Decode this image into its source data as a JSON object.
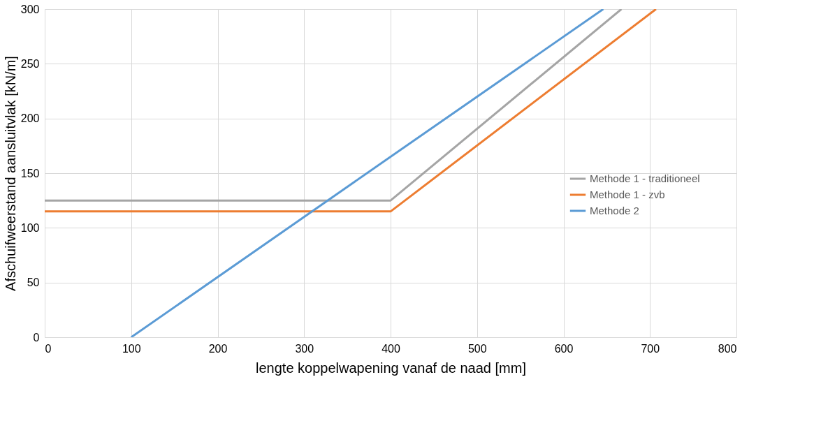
{
  "chart_data": {
    "type": "line",
    "xlabel": "lengte koppelwapening  vanaf de naad [mm]",
    "ylabel": "Afschuifweerstand aansluitvlak [kN/m]",
    "xlim": [
      0,
      800
    ],
    "xticks": [
      0,
      100,
      200,
      300,
      400,
      500,
      600,
      700,
      800
    ],
    "ylim": [
      0,
      300
    ],
    "yticks": [
      0,
      50,
      100,
      150,
      200,
      250,
      300
    ],
    "grid": true,
    "legend": "right",
    "marker": "none",
    "line_style": "solid",
    "series": [
      {
        "name": "Methode 1 - traditioneel",
        "color": "#a5a5a5",
        "x": [
          0,
          400,
          667
        ],
        "values": [
          125,
          125,
          300
        ]
      },
      {
        "name": "Methode 1 - zvb",
        "color": "#ed7d31",
        "x": [
          0,
          400,
          707
        ],
        "values": [
          115,
          115,
          300
        ]
      },
      {
        "name": "Methode 2",
        "color": "#5b9bd5",
        "x": [
          100,
          400,
          646
        ],
        "values": [
          0,
          165,
          300
        ]
      }
    ]
  }
}
